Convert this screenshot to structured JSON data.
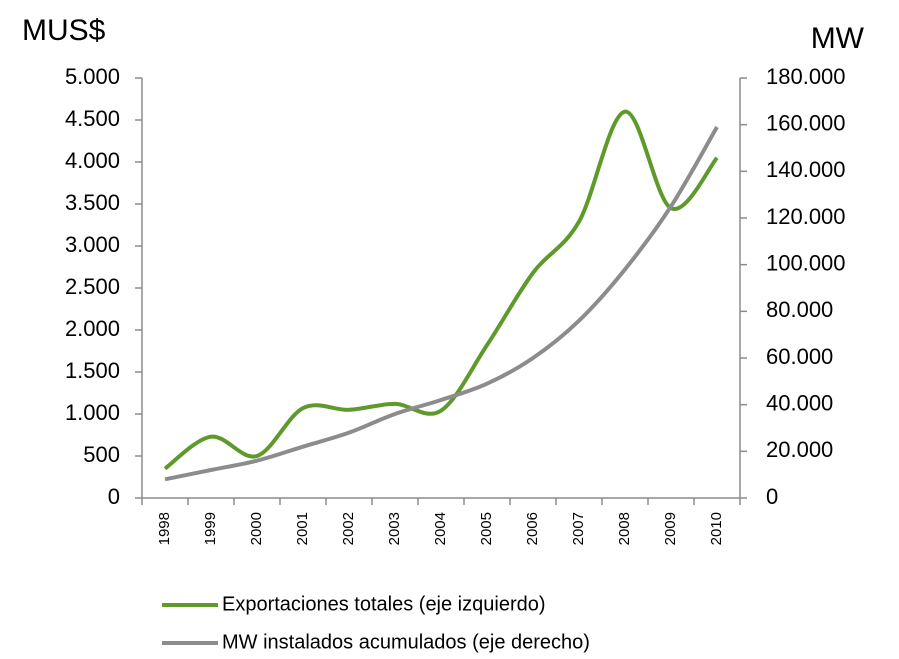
{
  "chart_data": {
    "type": "line",
    "ylabel": "MUS$",
    "y2label": "MW",
    "categories": [
      "1998",
      "1999",
      "2000",
      "2001",
      "2002",
      "2003",
      "2004",
      "2005",
      "2006",
      "2007",
      "2008",
      "2009",
      "2010"
    ],
    "series": [
      {
        "name": "Exportaciones totales (eje izquierdo)",
        "color": "#5e9a2b",
        "axis": "y",
        "values": [
          350,
          730,
          500,
          1070,
          1050,
          1120,
          1040,
          1820,
          2680,
          3290,
          4600,
          3450,
          4050
        ]
      },
      {
        "name": "MW instalados acumulados (eje derecho)",
        "color": "#8c8c8c",
        "axis": "y2",
        "values": [
          8000,
          12000,
          16000,
          22000,
          28000,
          36000,
          42000,
          49000,
          60000,
          76000,
          98000,
          125000,
          159000
        ]
      }
    ],
    "ylim": [
      0,
      5000
    ],
    "yticks": [
      0,
      500,
      {
        "value": 1000,
        "label": "1.000"
      },
      {
        "value": 1500,
        "label": "1.500"
      },
      {
        "value": 2000,
        "label": "2.000"
      },
      {
        "value": 2500,
        "label": "2.500"
      },
      {
        "value": 3000,
        "label": "3.000"
      },
      {
        "value": 3500,
        "label": "3.500"
      },
      {
        "value": 4000,
        "label": "4.000"
      },
      {
        "value": 4500,
        "label": "4.500"
      },
      {
        "value": 5000,
        "label": "5.000"
      }
    ],
    "y2lim": [
      0,
      180000
    ],
    "y2ticks": [
      0,
      {
        "value": 20000,
        "label": "20.000"
      },
      {
        "value": 40000,
        "label": "40.000"
      },
      {
        "value": 60000,
        "label": "60.000"
      },
      {
        "value": 80000,
        "label": "80.000"
      },
      {
        "value": 100000,
        "label": "100.000"
      },
      {
        "value": 120000,
        "label": "120.000"
      },
      {
        "value": 140000,
        "label": "140.000"
      },
      {
        "value": 160000,
        "label": "160.000"
      },
      {
        "value": 180000,
        "label": "180.000"
      }
    ],
    "smooth": true
  }
}
